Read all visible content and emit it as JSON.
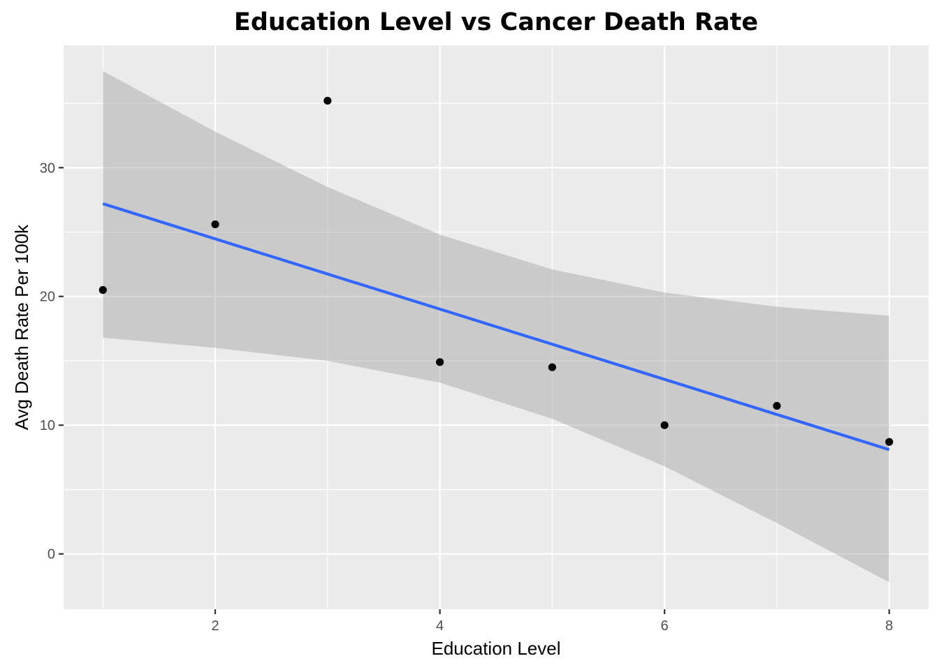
{
  "chart_data": {
    "type": "scatter",
    "title": "Education Level vs Cancer Death Rate",
    "xlabel": "Education Level",
    "ylabel": "Avg Death Rate Per 100k",
    "xlim": [
      0.65,
      8.35
    ],
    "ylim": [
      -4.3,
      39.5
    ],
    "x_ticks": [
      2,
      4,
      6,
      8
    ],
    "y_ticks": [
      0,
      10,
      20,
      30
    ],
    "grid": true,
    "legend": "none",
    "points": {
      "x": [
        1,
        2,
        3,
        4,
        5,
        6,
        7,
        8
      ],
      "y": [
        20.5,
        25.6,
        35.2,
        14.9,
        14.5,
        10.0,
        11.5,
        8.7
      ],
      "color": "#000000"
    },
    "fit_line": {
      "method": "linear regression",
      "x": [
        1,
        8
      ],
      "y": [
        27.2,
        8.1
      ],
      "color": "#3366FF"
    },
    "confidence_band": {
      "color": "#999999",
      "x": [
        1,
        2,
        3,
        4,
        5,
        6,
        7,
        8
      ],
      "lower": [
        16.8,
        16.0,
        15.0,
        13.3,
        10.5,
        6.8,
        2.4,
        -2.2
      ],
      "upper": [
        37.5,
        32.8,
        28.5,
        24.8,
        22.1,
        20.3,
        19.2,
        18.5
      ]
    }
  }
}
